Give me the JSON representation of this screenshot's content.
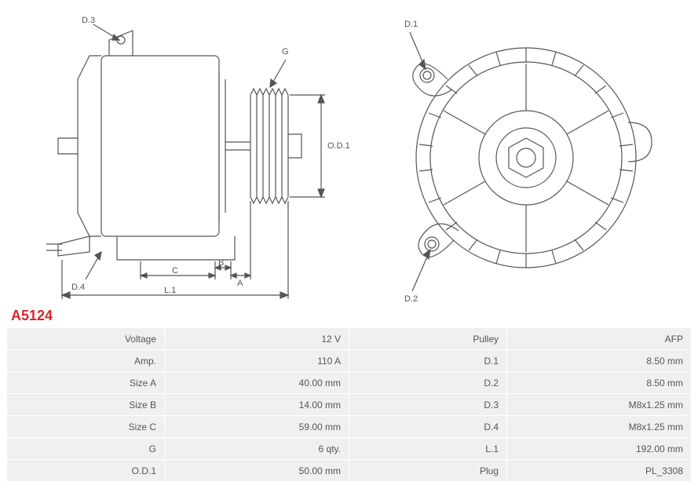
{
  "part_id": "A5124",
  "colors": {
    "stroke": "#555555",
    "part_id": "#d62828",
    "table_bg": "#f0f0f0",
    "page_bg": "#ffffff"
  },
  "diagram": {
    "type": "engineering-drawing",
    "stroke_width": 1.2,
    "callouts_side": [
      "D.3",
      "G",
      "O.D.1",
      "D.4",
      "C",
      "B",
      "A",
      "L.1"
    ],
    "callouts_rear": [
      "D.1",
      "D.2"
    ]
  },
  "spec_rows": [
    {
      "l1": "Voltage",
      "v1": "12 V",
      "l2": "Pulley",
      "v2": "AFP"
    },
    {
      "l1": "Amp.",
      "v1": "110 A",
      "l2": "D.1",
      "v2": "8.50 mm"
    },
    {
      "l1": "Size A",
      "v1": "40.00 mm",
      "l2": "D.2",
      "v2": "8.50 mm"
    },
    {
      "l1": "Size B",
      "v1": "14.00 mm",
      "l2": "D.3",
      "v2": "M8x1.25 mm"
    },
    {
      "l1": "Size C",
      "v1": "59.00 mm",
      "l2": "D.4",
      "v2": "M8x1.25 mm"
    },
    {
      "l1": "G",
      "v1": "6 qty.",
      "l2": "L.1",
      "v2": "192.00 mm"
    },
    {
      "l1": "O.D.1",
      "v1": "50.00 mm",
      "l2": "Plug",
      "v2": "PL_3308"
    }
  ]
}
